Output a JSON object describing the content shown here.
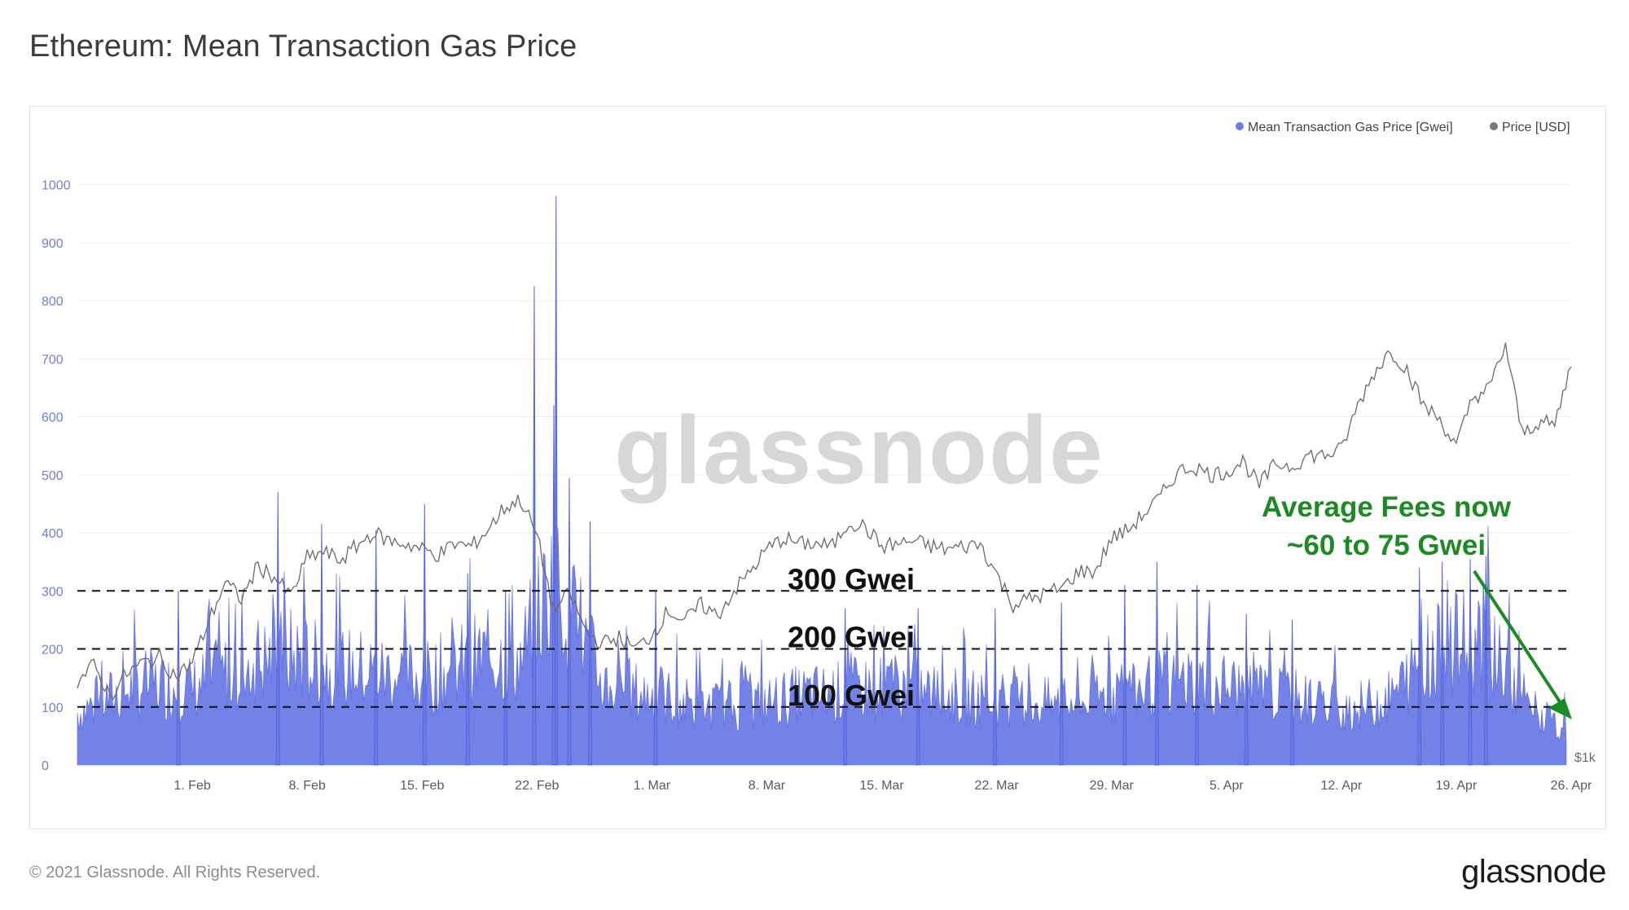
{
  "page": {
    "title": "Ethereum: Mean Transaction Gas Price",
    "copyright": "© 2021 Glassnode. All Rights Reserved.",
    "brand": "glassnode",
    "watermark": "glassnode"
  },
  "colors": {
    "gas": "#6b7ce6",
    "gas_line": "#5665dc",
    "price": "#6a6a6a",
    "annotation_green": "#1e8a23",
    "reference_line": "#111111",
    "grid": "#ededed",
    "watermark": "#d7d7d7"
  },
  "chart_data": {
    "type": "area",
    "title": "Ethereum: Mean Transaction Gas Price",
    "legend_position": "top-right",
    "grid": true,
    "legend": [
      {
        "name": "Mean Transaction Gas Price [Gwei]",
        "color": "#6b7ce6"
      },
      {
        "name": "Price [USD]",
        "color": "#7a7a7a"
      }
    ],
    "x_range": [
      "2021-01-25",
      "2021-04-26"
    ],
    "x_ticks": [
      "1. Feb",
      "8. Feb",
      "15. Feb",
      "22. Feb",
      "1. Mar",
      "8. Mar",
      "15. Mar",
      "22. Mar",
      "29. Mar",
      "5. Apr",
      "12. Apr",
      "19. Apr",
      "26. Apr"
    ],
    "y_left": {
      "ylim": [
        0,
        1050
      ],
      "ticks": [
        0,
        100,
        200,
        300,
        400,
        500,
        600,
        700,
        800,
        900,
        1000
      ]
    },
    "y_right": {
      "tick_label": "$1k"
    },
    "series": [
      {
        "name": "Mean Transaction Gas Price [Gwei]",
        "type": "area",
        "x": [
          "2021-01-25",
          "2021-01-27",
          "2021-01-29",
          "2021-02-01",
          "2021-02-03",
          "2021-02-05",
          "2021-02-07",
          "2021-02-09",
          "2021-02-11",
          "2021-02-13",
          "2021-02-15",
          "2021-02-17",
          "2021-02-19",
          "2021-02-21",
          "2021-02-22",
          "2021-02-23",
          "2021-02-24",
          "2021-02-26",
          "2021-02-28",
          "2021-03-02",
          "2021-03-04",
          "2021-03-06",
          "2021-03-08",
          "2021-03-10",
          "2021-03-12",
          "2021-03-14",
          "2021-03-16",
          "2021-03-18",
          "2021-03-20",
          "2021-03-22",
          "2021-03-24",
          "2021-03-26",
          "2021-03-28",
          "2021-03-30",
          "2021-04-01",
          "2021-04-03",
          "2021-04-05",
          "2021-04-07",
          "2021-04-09",
          "2021-04-11",
          "2021-04-13",
          "2021-04-15",
          "2021-04-17",
          "2021-04-19",
          "2021-04-21",
          "2021-04-23",
          "2021-04-25",
          "2021-04-26"
        ],
        "values": [
          110,
          140,
          170,
          160,
          190,
          215,
          230,
          205,
          200,
          190,
          180,
          200,
          230,
          215,
          310,
          380,
          320,
          170,
          150,
          140,
          120,
          125,
          130,
          145,
          150,
          160,
          165,
          150,
          140,
          135,
          130,
          125,
          140,
          155,
          170,
          175,
          165,
          150,
          140,
          125,
          120,
          140,
          220,
          250,
          270,
          130,
          80,
          70
        ],
        "peaks": [
          {
            "x": "2021-01-31",
            "y": 300
          },
          {
            "x": "2021-02-06",
            "y": 470
          },
          {
            "x": "2021-02-09",
            "y": 415
          },
          {
            "x": "2021-02-12",
            "y": 405
          },
          {
            "x": "2021-02-15",
            "y": 450
          },
          {
            "x": "2021-02-18",
            "y": 330
          },
          {
            "x": "2021-02-20",
            "y": 300
          },
          {
            "x": "2021-02-22",
            "y": 825
          },
          {
            "x": "2021-02-23",
            "y": 980
          },
          {
            "x": "2021-02-23",
            "y": 620
          },
          {
            "x": "2021-02-24",
            "y": 495
          },
          {
            "x": "2021-02-25",
            "y": 420
          },
          {
            "x": "2021-03-01",
            "y": 300
          },
          {
            "x": "2021-03-13",
            "y": 270
          },
          {
            "x": "2021-03-17",
            "y": 270
          },
          {
            "x": "2021-03-22",
            "y": 270
          },
          {
            "x": "2021-03-26",
            "y": 280
          },
          {
            "x": "2021-03-30",
            "y": 310
          },
          {
            "x": "2021-04-01",
            "y": 350
          },
          {
            "x": "2021-04-03",
            "y": 310
          },
          {
            "x": "2021-04-06",
            "y": 260
          },
          {
            "x": "2021-04-09",
            "y": 250
          },
          {
            "x": "2021-04-17",
            "y": 340
          },
          {
            "x": "2021-04-18",
            "y": 350
          },
          {
            "x": "2021-04-20",
            "y": 355
          },
          {
            "x": "2021-04-21",
            "y": 360
          }
        ]
      },
      {
        "name": "Price [USD]",
        "type": "line",
        "x": [
          "2021-01-25",
          "2021-01-26",
          "2021-01-27",
          "2021-01-28",
          "2021-01-29",
          "2021-01-30",
          "2021-01-31",
          "2021-02-01",
          "2021-02-02",
          "2021-02-03",
          "2021-02-04",
          "2021-02-05",
          "2021-02-06",
          "2021-02-07",
          "2021-02-08",
          "2021-02-09",
          "2021-02-10",
          "2021-02-11",
          "2021-02-12",
          "2021-02-13",
          "2021-02-14",
          "2021-02-15",
          "2021-02-16",
          "2021-02-17",
          "2021-02-18",
          "2021-02-19",
          "2021-02-20",
          "2021-02-21",
          "2021-02-22",
          "2021-02-23",
          "2021-02-24",
          "2021-02-25",
          "2021-02-26",
          "2021-02-27",
          "2021-02-28",
          "2021-03-01",
          "2021-03-02",
          "2021-03-03",
          "2021-03-04",
          "2021-03-05",
          "2021-03-06",
          "2021-03-07",
          "2021-03-08",
          "2021-03-09",
          "2021-03-10",
          "2021-03-11",
          "2021-03-12",
          "2021-03-13",
          "2021-03-14",
          "2021-03-15",
          "2021-03-16",
          "2021-03-17",
          "2021-03-18",
          "2021-03-19",
          "2021-03-20",
          "2021-03-21",
          "2021-03-22",
          "2021-03-23",
          "2021-03-24",
          "2021-03-25",
          "2021-03-26",
          "2021-03-27",
          "2021-03-28",
          "2021-03-29",
          "2021-03-30",
          "2021-03-31",
          "2021-04-01",
          "2021-04-02",
          "2021-04-03",
          "2021-04-04",
          "2021-04-05",
          "2021-04-06",
          "2021-04-07",
          "2021-04-08",
          "2021-04-09",
          "2021-04-10",
          "2021-04-11",
          "2021-04-12",
          "2021-04-13",
          "2021-04-14",
          "2021-04-15",
          "2021-04-16",
          "2021-04-17",
          "2021-04-18",
          "2021-04-19",
          "2021-04-20",
          "2021-04-21",
          "2021-04-22",
          "2021-04-23",
          "2021-04-24",
          "2021-04-25",
          "2021-04-26"
        ],
        "values": [
          1300,
          1360,
          1250,
          1330,
          1370,
          1390,
          1320,
          1370,
          1520,
          1660,
          1600,
          1720,
          1680,
          1610,
          1750,
          1770,
          1740,
          1790,
          1840,
          1810,
          1800,
          1780,
          1760,
          1800,
          1790,
          1850,
          1930,
          1960,
          1830,
          1560,
          1620,
          1480,
          1440,
          1460,
          1420,
          1470,
          1560,
          1520,
          1580,
          1540,
          1630,
          1700,
          1780,
          1820,
          1800,
          1800,
          1790,
          1880,
          1860,
          1790,
          1800,
          1810,
          1790,
          1780,
          1790,
          1800,
          1690,
          1580,
          1600,
          1620,
          1640,
          1700,
          1700,
          1820,
          1850,
          1910,
          1970,
          2060,
          2080,
          2050,
          2060,
          2100,
          2010,
          2090,
          2080,
          2120,
          2120,
          2140,
          2300,
          2420,
          2500,
          2430,
          2300,
          2250,
          2150,
          2330,
          2360,
          2520,
          2200,
          2240,
          2230,
          2450
        ]
      }
    ],
    "reference_lines": [
      {
        "y": 300,
        "label": "300 Gwei"
      },
      {
        "y": 200,
        "label": "200 Gwei"
      },
      {
        "y": 100,
        "label": "100 Gwei"
      }
    ],
    "annotation": {
      "line1": "Average Fees now",
      "line2": "~60 to 75 Gwei"
    }
  }
}
